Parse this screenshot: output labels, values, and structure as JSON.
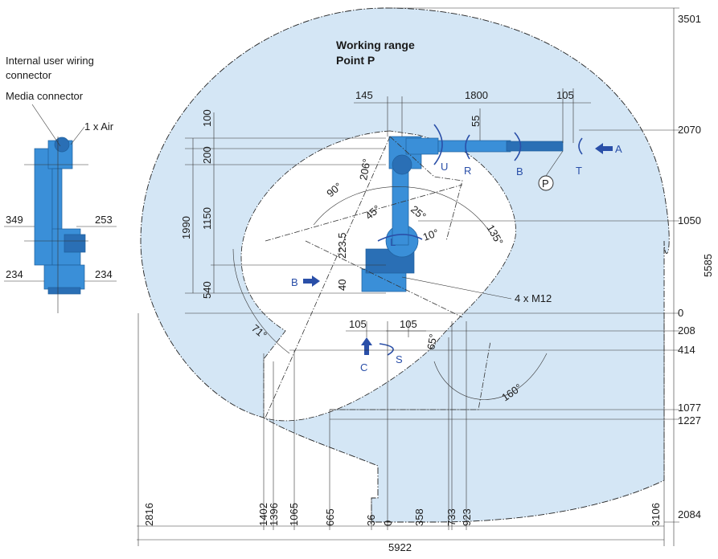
{
  "title": {
    "line1": "Working range",
    "line2": "Point P"
  },
  "side_view": {
    "labels": [
      "Internal user wiring",
      "connector",
      "Media connector",
      "1 x Air"
    ],
    "dims": {
      "left_upper": "349",
      "right_upper": "253",
      "left_lower": "234",
      "right_lower": "234"
    }
  },
  "top_dims": {
    "d145": "145",
    "d1800": "1800",
    "d105": "105",
    "d55": "55"
  },
  "left_dims": {
    "d100": "100",
    "d200": "200",
    "d1150": "1150",
    "d1990": "1990",
    "d540": "540"
  },
  "right_dims": {
    "r3501": "3501",
    "r2070": "2070",
    "r1050": "1050",
    "r5585": "5585",
    "r0": "0",
    "r208": "208",
    "r414": "414",
    "r1077": "1077",
    "r1227": "1227",
    "r2084": "2084"
  },
  "bottom_dims": {
    "b2816": "2816",
    "b1402": "1402",
    "b1396": "1396",
    "b1065": "1065",
    "b665": "665",
    "b36": "36",
    "b0": "0",
    "b358": "358",
    "b733": "733",
    "b923": "923",
    "b3106": "3106",
    "b5922": "5922"
  },
  "base_dims": {
    "d105a": "105",
    "d105b": "105",
    "d40": "40",
    "d223": "223.5"
  },
  "angles": {
    "a206": "206°",
    "a90": "90°",
    "a45": "45°",
    "a25": "25°",
    "a10": "10°",
    "a135": "135°",
    "a71": "71°",
    "a65": "65°",
    "a160": "160°"
  },
  "axes": {
    "U": "U",
    "R": "R",
    "B": "B",
    "T": "T",
    "A": "A",
    "L": "L",
    "S": "S",
    "C": "C",
    "Bleft": "B",
    "P": "P"
  },
  "notes": {
    "m12": "4 x M12"
  }
}
